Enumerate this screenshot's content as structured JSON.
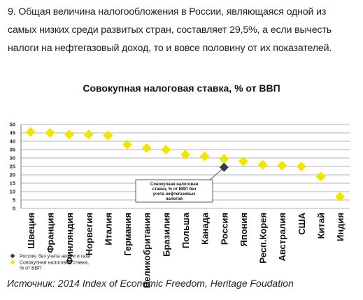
{
  "paragraph": {
    "lines": [
      "9. Общая величина налогообложения в России, являющаяся одной из",
      "самых низких среди развитых стран, составляет 29,5%, а если вычесть",
      "налоги на нефтегазовый доход, то и вовсе половину от их показателей."
    ]
  },
  "source": "Источник: 2014 Index of Economic Freedom, Heritage Foudation",
  "colors": {
    "series_main": "#f2e600",
    "series_russia": "#3a3a3a",
    "grid": "#9a9a9a"
  },
  "chart_data": {
    "type": "scatter",
    "title": "Совокупная налоговая ставка, % от ВВП",
    "xlabel": "",
    "ylabel": "",
    "categories": [
      "Швеция",
      "Франция",
      "Финляндия",
      "Норвегия",
      "Италия",
      "Германия",
      "Великобритания",
      "Бразилия",
      "Польша",
      "Канада",
      "Россия",
      "Япония",
      "Респ.Корея",
      "Австралия",
      "США",
      "Китай",
      "Индия"
    ],
    "ylim": [
      0,
      50
    ],
    "yticks": [
      0,
      5,
      10,
      15,
      20,
      25,
      30,
      35,
      40,
      45,
      50
    ],
    "grid": true,
    "legend_position": "bottom-left",
    "series": [
      {
        "name": "Совокупная налоговая ставка, % от ВВП",
        "marker": "diamond",
        "values": [
          45.5,
          45,
          44,
          44,
          43.5,
          38,
          36,
          35,
          32,
          31,
          29.5,
          28,
          26,
          25.5,
          25,
          19,
          7
        ]
      },
      {
        "name": "Россия, без учета нефти и газа",
        "marker": "diamond",
        "values": [
          null,
          null,
          null,
          null,
          null,
          null,
          null,
          null,
          null,
          null,
          24.5,
          null,
          null,
          null,
          null,
          null,
          null
        ]
      }
    ],
    "annotations": [
      {
        "text": "Совокупная налоговая ставка, % от ВВП без учета нефтегазовых налогов",
        "target_category": "Россия"
      }
    ]
  }
}
